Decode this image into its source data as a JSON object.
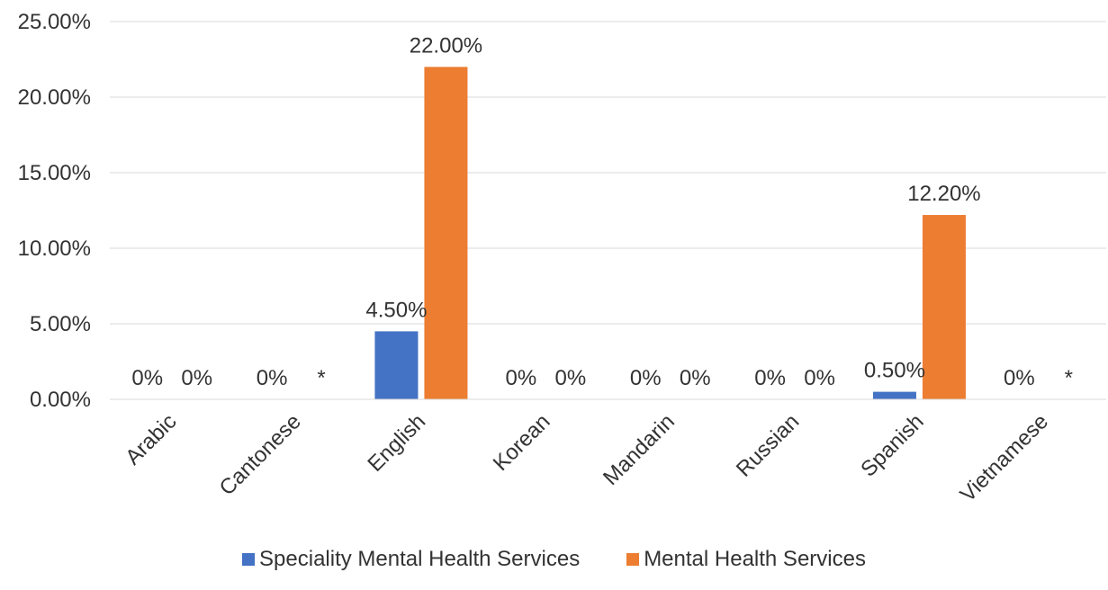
{
  "chart_data": {
    "type": "bar",
    "title": "",
    "xlabel": "",
    "ylabel": "",
    "ylim": [
      0,
      25
    ],
    "yticks": [
      0,
      5,
      10,
      15,
      20,
      25
    ],
    "ytick_labels": [
      "0.00%",
      "5.00%",
      "10.00%",
      "15.00%",
      "20.00%",
      "25.00%"
    ],
    "grid": true,
    "legend_position": "bottom",
    "categories": [
      "Arabic",
      "Cantonese",
      "English",
      "Korean",
      "Mandarin",
      "Russian",
      "Spanish",
      "Vietnamese"
    ],
    "series": [
      {
        "name": "Speciality Mental Health Services",
        "color": "#4472C4",
        "values": [
          0,
          0,
          4.5,
          0,
          0,
          0,
          0.5,
          0
        ],
        "labels": [
          "0%",
          "0%",
          "4.50%",
          "0%",
          "0%",
          "0%",
          "0.50%",
          "0%"
        ]
      },
      {
        "name": "Mental Health Services",
        "color": "#ED7D31",
        "values": [
          0,
          null,
          22.0,
          0,
          0,
          0,
          12.2,
          null
        ],
        "labels": [
          "0%",
          "*",
          "22.00%",
          "0%",
          "0%",
          "0%",
          "12.20%",
          "*"
        ]
      }
    ]
  }
}
